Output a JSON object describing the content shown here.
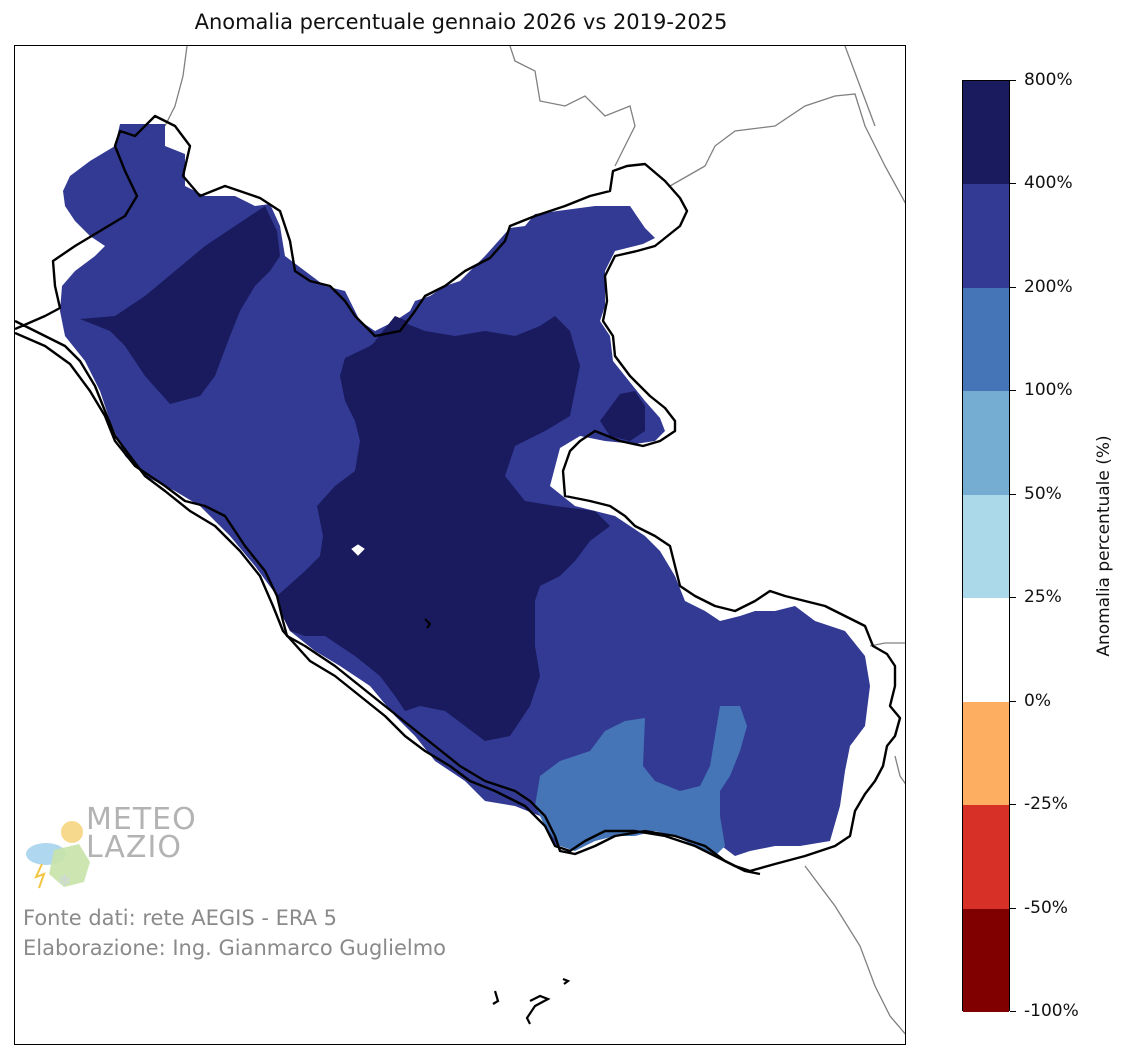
{
  "title": "Anomalia percentuale gennaio 2026 vs 2019-2025",
  "colorbar": {
    "label": "Anomalia percentuale (%)",
    "levels": [
      {
        "label": "800%"
      },
      {
        "label": "400%"
      },
      {
        "label": "200%"
      },
      {
        "label": "100%"
      },
      {
        "label": "50%"
      },
      {
        "label": "25%"
      },
      {
        "label": "0%"
      },
      {
        "label": "-25%"
      },
      {
        "label": "-50%"
      },
      {
        "label": "-100%"
      }
    ],
    "colors": [
      "#1a1a5e",
      "#323a94",
      "#4575b7",
      "#74add1",
      "#abd9e9",
      "#ffffff",
      "#fdae61",
      "#d73027",
      "#800000"
    ]
  },
  "credits": {
    "line1": "Fonte dati: rete AEGIS - ERA 5",
    "line2": "Elaborazione: Ing. Gianmarco Guglielmo"
  },
  "logo": {
    "text_line1": "METEO",
    "text_line2": "LAZIO"
  },
  "map": {
    "region": "Lazio",
    "colors": {
      "very_high": "#1a1a5e",
      "high": "#323a94",
      "medium": "#4575b7",
      "border": "#000000",
      "neighbor_border": "#808080"
    }
  }
}
